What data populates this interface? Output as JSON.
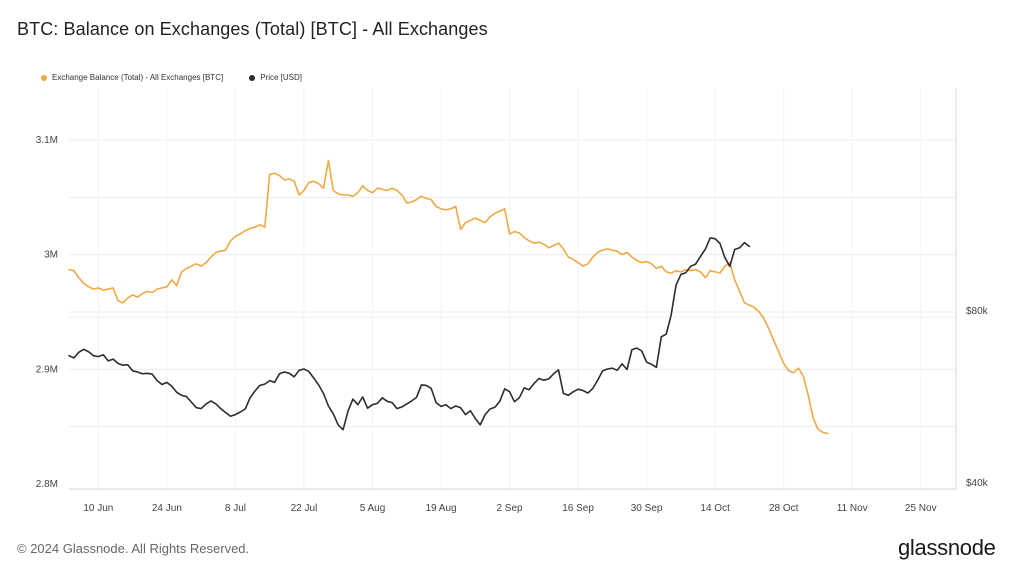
{
  "title": "BTC: Balance on Exchanges (Total) [BTC] - All Exchanges",
  "legend": {
    "balance_label": "Exchange Balance (Total) - All Exchanges [BTC]",
    "price_label": "Price [USD]"
  },
  "footer": {
    "copyright": "© 2024 Glassnode. All Rights Reserved."
  },
  "brand": "glassnode",
  "colors": {
    "balance": "#f0a845",
    "price": "#2c2c2c",
    "grid": "#ececec"
  },
  "chart_data": {
    "type": "line",
    "title": "BTC: Balance on Exchanges (Total) [BTC] - All Exchanges",
    "grid": true,
    "legend_position": "top-left",
    "x_tick_labels": [
      "10 Jun",
      "24 Jun",
      "8 Jul",
      "22 Jul",
      "5 Aug",
      "19 Aug",
      "2 Sep",
      "16 Sep",
      "30 Sep",
      "14 Oct",
      "28 Oct",
      "11 Nov",
      "25 Nov"
    ],
    "x_tick_days": [
      6,
      20,
      34,
      48,
      62,
      76,
      90,
      104,
      118,
      132,
      146,
      160,
      174
    ],
    "x_range_days": [
      0,
      181
    ],
    "y_left": {
      "ticks": [
        "3.1M",
        "3M",
        "2.9M",
        "2.8M"
      ],
      "tick_values": [
        3100000,
        3000000,
        2900000,
        2800000
      ],
      "range": [
        2800000,
        3120000
      ]
    },
    "y_right": {
      "ticks": [
        "$80k",
        "$40k"
      ],
      "tick_values": [
        80000,
        40000
      ],
      "range": [
        40000,
        120000
      ]
    },
    "series": [
      {
        "name": "Exchange Balance (Total) - All Exchanges [BTC]",
        "axis": "left",
        "points": [
          [
            0,
            2987000
          ],
          [
            1,
            2986000
          ],
          [
            2,
            2980000
          ],
          [
            3,
            2975000
          ],
          [
            4,
            2972000
          ],
          [
            5,
            2970000
          ],
          [
            6,
            2971000
          ],
          [
            7,
            2969000
          ],
          [
            8,
            2970000
          ],
          [
            9,
            2971000
          ],
          [
            10,
            2960000
          ],
          [
            11,
            2958000
          ],
          [
            12,
            2962000
          ],
          [
            13,
            2965000
          ],
          [
            14,
            2963000
          ],
          [
            15,
            2966000
          ],
          [
            16,
            2968000
          ],
          [
            17,
            2967000
          ],
          [
            18,
            2970000
          ],
          [
            19,
            2971000
          ],
          [
            20,
            2972000
          ],
          [
            21,
            2978000
          ],
          [
            22,
            2973000
          ],
          [
            23,
            2985000
          ],
          [
            24,
            2988000
          ],
          [
            25,
            2990000
          ],
          [
            26,
            2992000
          ],
          [
            27,
            2990000
          ],
          [
            28,
            2993000
          ],
          [
            29,
            2998000
          ],
          [
            30,
            3002000
          ],
          [
            31,
            3003000
          ],
          [
            32,
            3004000
          ],
          [
            33,
            3012000
          ],
          [
            34,
            3016000
          ],
          [
            35,
            3018000
          ],
          [
            36,
            3021000
          ],
          [
            37,
            3023000
          ],
          [
            38,
            3024000
          ],
          [
            39,
            3026000
          ],
          [
            40,
            3024000
          ],
          [
            41,
            3070000
          ],
          [
            42,
            3071000
          ],
          [
            43,
            3069000
          ],
          [
            44,
            3065000
          ],
          [
            45,
            3066000
          ],
          [
            46,
            3064000
          ],
          [
            47,
            3052000
          ],
          [
            48,
            3056000
          ],
          [
            49,
            3063000
          ],
          [
            50,
            3064000
          ],
          [
            51,
            3062000
          ],
          [
            52,
            3058000
          ],
          [
            53,
            3082000
          ],
          [
            54,
            3056000
          ],
          [
            55,
            3053000
          ],
          [
            56,
            3052000
          ],
          [
            57,
            3052000
          ],
          [
            58,
            3051000
          ],
          [
            59,
            3054000
          ],
          [
            60,
            3060000
          ],
          [
            61,
            3056000
          ],
          [
            62,
            3054000
          ],
          [
            63,
            3058000
          ],
          [
            64,
            3057000
          ],
          [
            65,
            3056000
          ],
          [
            66,
            3058000
          ],
          [
            67,
            3056000
          ],
          [
            68,
            3052000
          ],
          [
            69,
            3045000
          ],
          [
            70,
            3046000
          ],
          [
            71,
            3048000
          ],
          [
            72,
            3051000
          ],
          [
            73,
            3049000
          ],
          [
            74,
            3048000
          ],
          [
            75,
            3042000
          ],
          [
            76,
            3040000
          ],
          [
            77,
            3039000
          ],
          [
            78,
            3040000
          ],
          [
            79,
            3042000
          ],
          [
            80,
            3022000
          ],
          [
            81,
            3028000
          ],
          [
            82,
            3030000
          ],
          [
            83,
            3032000
          ],
          [
            84,
            3030000
          ],
          [
            85,
            3028000
          ],
          [
            86,
            3033000
          ],
          [
            87,
            3036000
          ],
          [
            88,
            3038000
          ],
          [
            89,
            3040000
          ],
          [
            90,
            3018000
          ],
          [
            91,
            3020000
          ],
          [
            92,
            3019000
          ],
          [
            93,
            3015000
          ],
          [
            94,
            3012000
          ],
          [
            95,
            3010000
          ],
          [
            96,
            3011000
          ],
          [
            97,
            3009000
          ],
          [
            98,
            3006000
          ],
          [
            99,
            3008000
          ],
          [
            100,
            3010000
          ],
          [
            101,
            3005000
          ],
          [
            102,
            2998000
          ],
          [
            103,
            2996000
          ],
          [
            104,
            2993000
          ],
          [
            105,
            2990000
          ],
          [
            106,
            2992000
          ],
          [
            107,
            2998000
          ],
          [
            108,
            3002000
          ],
          [
            109,
            3004000
          ],
          [
            110,
            3005000
          ],
          [
            111,
            3004000
          ],
          [
            112,
            3003000
          ],
          [
            113,
            3000000
          ],
          [
            114,
            3002000
          ],
          [
            115,
            2998000
          ],
          [
            116,
            2995000
          ],
          [
            117,
            2993000
          ],
          [
            118,
            2994000
          ],
          [
            119,
            2992000
          ],
          [
            120,
            2988000
          ],
          [
            121,
            2990000
          ],
          [
            122,
            2985000
          ],
          [
            123,
            2984000
          ],
          [
            124,
            2986000
          ],
          [
            125,
            2985000
          ],
          [
            126,
            2987000
          ],
          [
            127,
            2986000
          ],
          [
            128,
            2987000
          ],
          [
            129,
            2985000
          ],
          [
            130,
            2980000
          ],
          [
            131,
            2986000
          ],
          [
            132,
            2985000
          ],
          [
            133,
            2984000
          ],
          [
            134,
            2990000
          ],
          [
            135,
            2993000
          ],
          [
            136,
            2978000
          ],
          [
            137,
            2968000
          ],
          [
            138,
            2958000
          ],
          [
            139,
            2956000
          ],
          [
            140,
            2954000
          ],
          [
            141,
            2950000
          ],
          [
            142,
            2944000
          ],
          [
            143,
            2935000
          ],
          [
            144,
            2925000
          ],
          [
            145,
            2915000
          ],
          [
            146,
            2905000
          ],
          [
            147,
            2899000
          ],
          [
            148,
            2897000
          ],
          [
            149,
            2901000
          ],
          [
            150,
            2894000
          ],
          [
            151,
            2878000
          ],
          [
            152,
            2858000
          ],
          [
            153,
            2848000
          ],
          [
            154,
            2845000
          ],
          [
            155,
            2844000
          ]
        ]
      },
      {
        "name": "Price [USD]",
        "axis": "right",
        "points": [
          [
            0,
            71000
          ],
          [
            1,
            70500
          ],
          [
            2,
            71800
          ],
          [
            3,
            72500
          ],
          [
            4,
            71900
          ],
          [
            5,
            71000
          ],
          [
            6,
            70800
          ],
          [
            7,
            71200
          ],
          [
            8,
            69800
          ],
          [
            9,
            70200
          ],
          [
            10,
            69200
          ],
          [
            11,
            68800
          ],
          [
            12,
            68900
          ],
          [
            13,
            67500
          ],
          [
            14,
            67200
          ],
          [
            15,
            66800
          ],
          [
            16,
            66900
          ],
          [
            17,
            66700
          ],
          [
            18,
            65200
          ],
          [
            19,
            64300
          ],
          [
            20,
            64800
          ],
          [
            21,
            63900
          ],
          [
            22,
            62500
          ],
          [
            23,
            61800
          ],
          [
            24,
            61500
          ],
          [
            25,
            60200
          ],
          [
            26,
            58900
          ],
          [
            27,
            58700
          ],
          [
            28,
            59800
          ],
          [
            29,
            60500
          ],
          [
            30,
            59800
          ],
          [
            31,
            58700
          ],
          [
            32,
            57800
          ],
          [
            33,
            56900
          ],
          [
            34,
            57300
          ],
          [
            35,
            57900
          ],
          [
            36,
            58600
          ],
          [
            37,
            61200
          ],
          [
            38,
            62800
          ],
          [
            39,
            64100
          ],
          [
            40,
            64400
          ],
          [
            41,
            65200
          ],
          [
            42,
            64800
          ],
          [
            43,
            66800
          ],
          [
            44,
            67200
          ],
          [
            45,
            66900
          ],
          [
            46,
            66100
          ],
          [
            47,
            67600
          ],
          [
            48,
            67900
          ],
          [
            49,
            67300
          ],
          [
            50,
            65800
          ],
          [
            51,
            64200
          ],
          [
            52,
            62200
          ],
          [
            53,
            59300
          ],
          [
            54,
            57500
          ],
          [
            55,
            54900
          ],
          [
            56,
            53800
          ],
          [
            57,
            58100
          ],
          [
            58,
            60900
          ],
          [
            59,
            59600
          ],
          [
            60,
            61400
          ],
          [
            61,
            58800
          ],
          [
            62,
            59600
          ],
          [
            63,
            59900
          ],
          [
            64,
            61200
          ],
          [
            65,
            60400
          ],
          [
            66,
            60100
          ],
          [
            67,
            58700
          ],
          [
            68,
            59100
          ],
          [
            69,
            59800
          ],
          [
            70,
            60500
          ],
          [
            71,
            61300
          ],
          [
            72,
            64200
          ],
          [
            73,
            64100
          ],
          [
            74,
            63400
          ],
          [
            75,
            60100
          ],
          [
            76,
            59200
          ],
          [
            77,
            59600
          ],
          [
            78,
            58700
          ],
          [
            79,
            59300
          ],
          [
            80,
            58900
          ],
          [
            81,
            57300
          ],
          [
            82,
            58200
          ],
          [
            83,
            56400
          ],
          [
            84,
            54900
          ],
          [
            85,
            57300
          ],
          [
            86,
            58600
          ],
          [
            87,
            59000
          ],
          [
            88,
            60400
          ],
          [
            89,
            63300
          ],
          [
            90,
            62600
          ],
          [
            91,
            60300
          ],
          [
            92,
            61200
          ],
          [
            93,
            63500
          ],
          [
            94,
            63100
          ],
          [
            95,
            64500
          ],
          [
            96,
            65700
          ],
          [
            97,
            65300
          ],
          [
            98,
            65600
          ],
          [
            99,
            66800
          ],
          [
            100,
            67700
          ],
          [
            101,
            62200
          ],
          [
            102,
            61800
          ],
          [
            103,
            62600
          ],
          [
            104,
            63200
          ],
          [
            105,
            62900
          ],
          [
            106,
            62300
          ],
          [
            107,
            63400
          ],
          [
            108,
            65300
          ],
          [
            109,
            67500
          ],
          [
            110,
            67900
          ],
          [
            111,
            68100
          ],
          [
            112,
            67600
          ],
          [
            113,
            69100
          ],
          [
            114,
            67800
          ],
          [
            115,
            72400
          ],
          [
            116,
            72800
          ],
          [
            117,
            72100
          ],
          [
            118,
            69500
          ],
          [
            119,
            69000
          ],
          [
            120,
            68300
          ],
          [
            121,
            75400
          ],
          [
            122,
            76000
          ],
          [
            123,
            80400
          ],
          [
            124,
            87400
          ],
          [
            125,
            89900
          ],
          [
            126,
            90300
          ],
          [
            127,
            91800
          ],
          [
            128,
            92300
          ],
          [
            129,
            94100
          ],
          [
            130,
            95800
          ],
          [
            131,
            98400
          ],
          [
            132,
            98200
          ],
          [
            133,
            97100
          ],
          [
            134,
            93800
          ],
          [
            135,
            91800
          ],
          [
            136,
            95700
          ],
          [
            137,
            96100
          ],
          [
            138,
            97300
          ],
          [
            139,
            96400
          ]
        ]
      }
    ]
  }
}
